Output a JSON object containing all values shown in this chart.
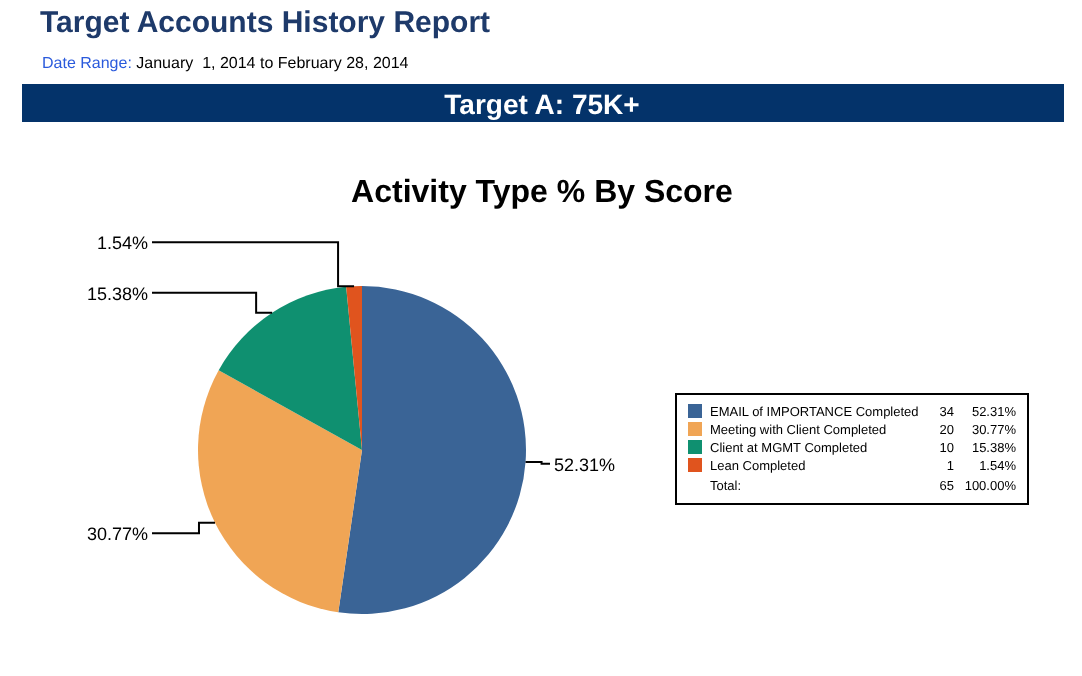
{
  "chart_data": {
    "type": "pie",
    "title": "Activity Type % By Score",
    "categories": [
      "EMAIL of IMPORTANCE Completed",
      "Meeting with Client Completed",
      "Client at MGMT Completed",
      "Lean Completed"
    ],
    "values": [
      52.31,
      30.77,
      15.38,
      1.54
    ],
    "value_labels": [
      "52.31%",
      "30.77%",
      "15.38%",
      "1.54%"
    ],
    "colors": [
      "#3a6496",
      "#f0a555",
      "#0f9070",
      "#e0541e"
    ],
    "legend": "right",
    "totals": [
      "65",
      "100.00%"
    ],
    "annotations": [
      "Target Accounts History Report",
      "Date Range:",
      "January  1, 2014 to February 28, 2014",
      "Target A: 75K+",
      "Total:",
      "34",
      "20",
      "10",
      "1"
    ]
  }
}
